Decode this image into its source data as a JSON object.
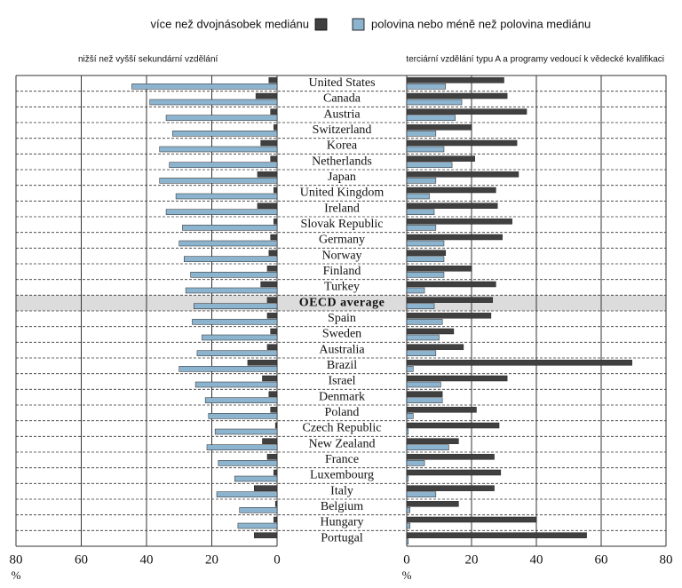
{
  "chart_data": [
    {
      "type": "bar",
      "orientation": "horizontal",
      "subtitle": "nižší než vyšší sekundární vzdělání",
      "x_label": "%",
      "categories": [
        "United States",
        "Canada",
        "Austria",
        "Switzerland",
        "Korea",
        "Netherlands",
        "Japan",
        "United Kingdom",
        "Ireland",
        "Slovak Republic",
        "Germany",
        "Norway",
        "Finland",
        "Turkey",
        "OECD average",
        "Spain",
        "Sweden",
        "Australia",
        "Brazil",
        "Israel",
        "Denmark",
        "Poland",
        "Czech Republic",
        "New Zealand",
        "France",
        "Luxembourg",
        "Italy",
        "Belgium",
        "Hungary",
        "Portugal"
      ],
      "highlight": "OECD average",
      "xlim": [
        80,
        0
      ],
      "xticks": [
        80,
        60,
        40,
        20,
        0
      ],
      "grid": true,
      "series": [
        {
          "name": "více než dvojnásobek mediánu",
          "color": "#404040",
          "values": [
            2.5,
            6.5,
            2,
            1,
            5,
            2,
            6,
            1,
            6,
            1,
            2,
            2.5,
            3,
            5,
            3,
            3,
            2,
            3,
            9,
            4.5,
            2.5,
            2,
            0.5,
            4.5,
            3,
            1,
            7,
            0.5,
            1,
            7
          ]
        },
        {
          "name": "polovina nebo méně než polovina mediánu",
          "color": "#8db4cf",
          "values": [
            44.5,
            39,
            34,
            32,
            36,
            33,
            36,
            31,
            34,
            29,
            30,
            28.5,
            26.5,
            28,
            25.5,
            26,
            23,
            24.5,
            30,
            25,
            22,
            21,
            19,
            21.5,
            18,
            13,
            18.5,
            11.5,
            12,
            0
          ]
        }
      ]
    },
    {
      "type": "bar",
      "orientation": "horizontal",
      "subtitle": "terciární vzdělání typu A a programy vedoucí k vědecké kvalifikaci",
      "x_label": "%",
      "xlim": [
        0,
        80
      ],
      "xticks": [
        0,
        20,
        40,
        60,
        80
      ],
      "grid": true,
      "series": [
        {
          "color": "#404040",
          "values": [
            30,
            31,
            37,
            20,
            34,
            21,
            34.5,
            27.5,
            28,
            32.5,
            29.5,
            12,
            20,
            27.5,
            26.5,
            26,
            14.5,
            17.5,
            69.5,
            31,
            11,
            21.5,
            28.5,
            16,
            27,
            29,
            27,
            16,
            40,
            55.5
          ]
        },
        {
          "color": "#8db4cf",
          "values": [
            12,
            17,
            15,
            9,
            11.5,
            14,
            9,
            7,
            8.5,
            9,
            11.5,
            11.5,
            11.5,
            5.5,
            8.5,
            11,
            10,
            9,
            2,
            10.5,
            11,
            2,
            0.5,
            13,
            5.5,
            0.5,
            9,
            1,
            1,
            0.5
          ]
        }
      ]
    }
  ]
}
